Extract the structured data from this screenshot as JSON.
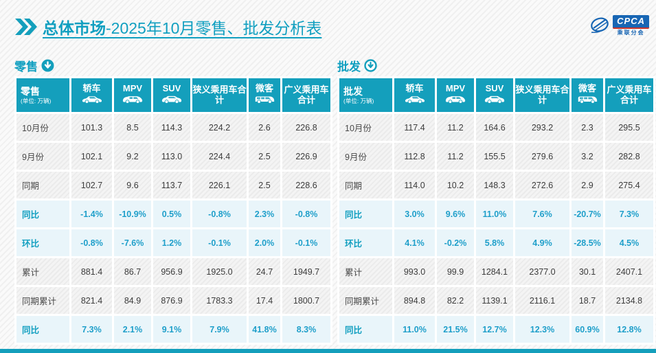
{
  "page": {
    "title_prefix": "总体市场",
    "title_rest": "-2025年10月零售、批发分析表",
    "logo": {
      "text": "CPCA",
      "subtext": "乘联分会"
    }
  },
  "colors": {
    "accent_teal": "#149fbc",
    "percent_blue": "#1f9fca",
    "percent_bg": "#e9f5fa",
    "logo_blue": "#1866b4"
  },
  "chart_data": [
    {
      "type": "table",
      "title": "零售",
      "unit": "(单位: 万辆)",
      "arrow_style": "filled",
      "columns": [
        {
          "label": "轿车",
          "icon": "sedan-icon"
        },
        {
          "label": "MPV",
          "icon": "mpv-icon"
        },
        {
          "label": "SUV",
          "icon": "suv-icon"
        },
        {
          "label": "狭义乘用车合计"
        },
        {
          "label": "微客",
          "icon": "microvan-icon"
        },
        {
          "label": "广义乘用车合计"
        }
      ],
      "rows": [
        {
          "label": "10月份",
          "type": "data",
          "values": [
            "101.3",
            "8.5",
            "114.3",
            "224.2",
            "2.6",
            "226.8"
          ]
        },
        {
          "label": "9月份",
          "type": "data",
          "values": [
            "102.1",
            "9.2",
            "113.0",
            "224.4",
            "2.5",
            "226.9"
          ]
        },
        {
          "label": "同期",
          "type": "data",
          "values": [
            "102.7",
            "9.6",
            "113.7",
            "226.1",
            "2.5",
            "228.6"
          ]
        },
        {
          "label": "同比",
          "type": "percent",
          "values": [
            "-1.4%",
            "-10.9%",
            "0.5%",
            "-0.8%",
            "2.3%",
            "-0.8%"
          ]
        },
        {
          "label": "环比",
          "type": "percent",
          "values": [
            "-0.8%",
            "-7.6%",
            "1.2%",
            "-0.1%",
            "2.0%",
            "-0.1%"
          ]
        },
        {
          "label": "累计",
          "type": "data",
          "values": [
            "881.4",
            "86.7",
            "956.9",
            "1925.0",
            "24.7",
            "1949.7"
          ]
        },
        {
          "label": "同期累计",
          "type": "data",
          "values": [
            "821.4",
            "84.9",
            "876.9",
            "1783.3",
            "17.4",
            "1800.7"
          ]
        },
        {
          "label": "同比",
          "type": "percent",
          "values": [
            "7.3%",
            "2.1%",
            "9.1%",
            "7.9%",
            "41.8%",
            "8.3%"
          ]
        }
      ]
    },
    {
      "type": "table",
      "title": "批发",
      "unit": "(单位: 万辆)",
      "arrow_style": "outline",
      "columns": [
        {
          "label": "轿车",
          "icon": "sedan-icon"
        },
        {
          "label": "MPV",
          "icon": "mpv-icon"
        },
        {
          "label": "SUV",
          "icon": "suv-icon"
        },
        {
          "label": "狭义乘用车合计"
        },
        {
          "label": "微客",
          "icon": "microvan-icon"
        },
        {
          "label": "广义乘用车合计"
        }
      ],
      "rows": [
        {
          "label": "10月份",
          "type": "data",
          "values": [
            "117.4",
            "11.2",
            "164.6",
            "293.2",
            "2.3",
            "295.5"
          ]
        },
        {
          "label": "9月份",
          "type": "data",
          "values": [
            "112.8",
            "11.2",
            "155.5",
            "279.6",
            "3.2",
            "282.8"
          ]
        },
        {
          "label": "同期",
          "type": "data",
          "values": [
            "114.0",
            "10.2",
            "148.3",
            "272.6",
            "2.9",
            "275.4"
          ]
        },
        {
          "label": "同比",
          "type": "percent",
          "values": [
            "3.0%",
            "9.6%",
            "11.0%",
            "7.6%",
            "-20.7%",
            "7.3%"
          ]
        },
        {
          "label": "环比",
          "type": "percent",
          "values": [
            "4.1%",
            "-0.2%",
            "5.8%",
            "4.9%",
            "-28.5%",
            "4.5%"
          ]
        },
        {
          "label": "累计",
          "type": "data",
          "values": [
            "993.0",
            "99.9",
            "1284.1",
            "2377.0",
            "30.1",
            "2407.1"
          ]
        },
        {
          "label": "同期累计",
          "type": "data",
          "values": [
            "894.8",
            "82.2",
            "1139.1",
            "2116.1",
            "18.7",
            "2134.8"
          ]
        },
        {
          "label": "同比",
          "type": "percent",
          "values": [
            "11.0%",
            "21.5%",
            "12.7%",
            "12.3%",
            "60.9%",
            "12.8%"
          ]
        }
      ]
    }
  ]
}
